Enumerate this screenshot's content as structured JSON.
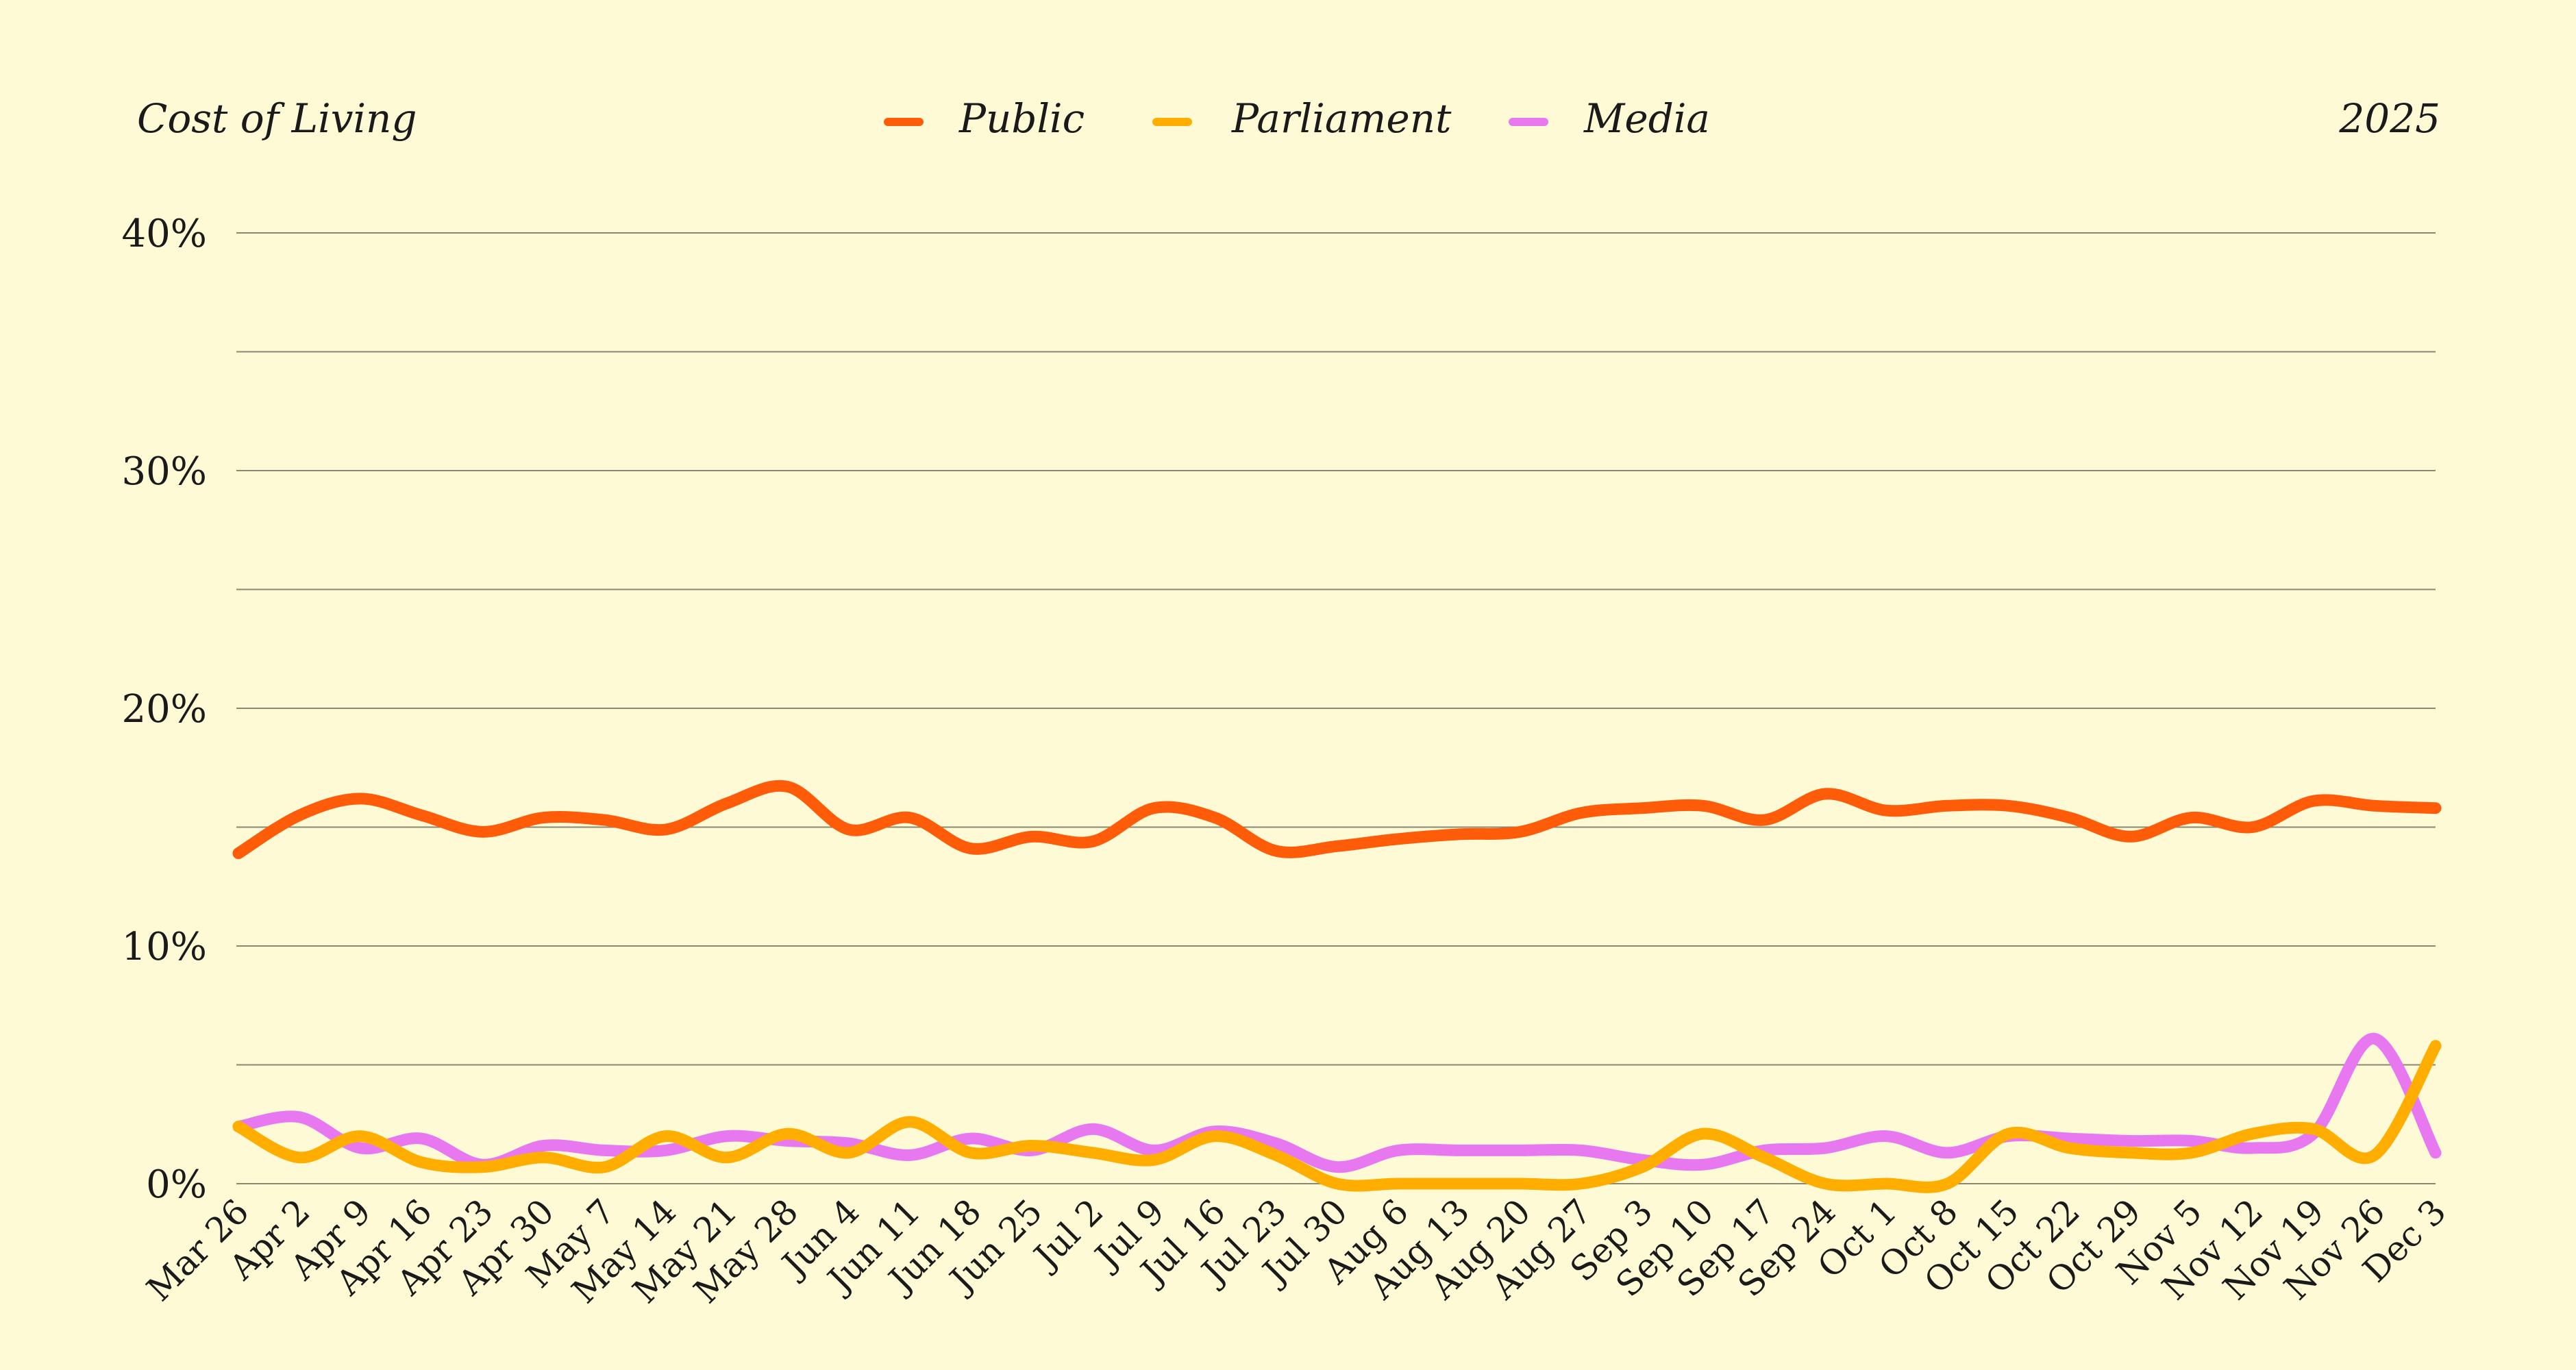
{
  "header": {
    "topic": "Cost of Living",
    "year": "2025"
  },
  "colors": {
    "background": "#FEFAD6",
    "public": "#FF5C0A",
    "parliament": "#FFAE00",
    "media": "#E878F0",
    "grid": "#8a8870",
    "text": "#1a1a1a"
  },
  "chart_data": {
    "type": "line",
    "title": "Cost of Living",
    "subtitle": "2025",
    "xlabel": "",
    "ylabel": "",
    "ylim": [
      0,
      40
    ],
    "yticks": [
      0,
      10,
      20,
      30,
      40
    ],
    "ytick_labels": [
      "0%",
      "10%",
      "20%",
      "30%",
      "40%"
    ],
    "grid": "horizontal lines every 5%",
    "legend_position": "top-center",
    "categories": [
      "Mar 26",
      "Apr 2",
      "Apr 9",
      "Apr 16",
      "Apr 23",
      "Apr 30",
      "May 7",
      "May 14",
      "May 21",
      "May 28",
      "Jun 4",
      "Jun 11",
      "Jun 18",
      "Jun 25",
      "Jul 2",
      "Jul 9",
      "Jul 16",
      "Jul 23",
      "Jul 30",
      "Aug 6",
      "Aug 13",
      "Aug 20",
      "Aug 27",
      "Sep 3",
      "Sep 10",
      "Sep 17",
      "Sep 24",
      "Oct 1",
      "Oct 8",
      "Oct 15",
      "Oct 22",
      "Oct 29",
      "Nov 5",
      "Nov 12",
      "Nov 19",
      "Nov 26",
      "Dec 3"
    ],
    "series": [
      {
        "name": "Public",
        "color": "#FF5C0A",
        "values": [
          13.9,
          15.5,
          16.2,
          15.5,
          14.8,
          15.4,
          15.3,
          14.9,
          16.0,
          16.7,
          14.9,
          15.4,
          14.1,
          14.6,
          14.4,
          15.8,
          15.4,
          14.0,
          14.2,
          14.5,
          14.7,
          14.8,
          15.6,
          15.8,
          15.9,
          15.3,
          16.4,
          15.7,
          15.9,
          15.9,
          15.4,
          14.6,
          15.4,
          15.0,
          16.1,
          15.9,
          15.8
        ]
      },
      {
        "name": "Parliament",
        "color": "#FFAE00",
        "values": [
          2.4,
          1.1,
          2.0,
          0.9,
          0.7,
          1.1,
          0.7,
          2.0,
          1.1,
          2.1,
          1.3,
          2.6,
          1.3,
          1.6,
          1.3,
          1.0,
          2.0,
          1.2,
          0.0,
          0.0,
          0.0,
          0.0,
          0.0,
          0.7,
          2.1,
          1.1,
          0.0,
          0.0,
          0.0,
          2.1,
          1.5,
          1.3,
          1.3,
          2.1,
          2.3,
          1.2,
          5.8
        ]
      },
      {
        "name": "Media",
        "color": "#E878F0",
        "values": [
          2.4,
          2.8,
          1.5,
          1.9,
          0.8,
          1.6,
          1.4,
          1.4,
          2.0,
          1.8,
          1.7,
          1.2,
          1.9,
          1.4,
          2.3,
          1.4,
          2.2,
          1.7,
          0.7,
          1.4,
          1.4,
          1.4,
          1.4,
          1.0,
          0.8,
          1.4,
          1.5,
          2.0,
          1.3,
          2.0,
          1.9,
          1.8,
          1.8,
          1.5,
          2.1,
          6.1,
          1.3
        ]
      }
    ]
  }
}
